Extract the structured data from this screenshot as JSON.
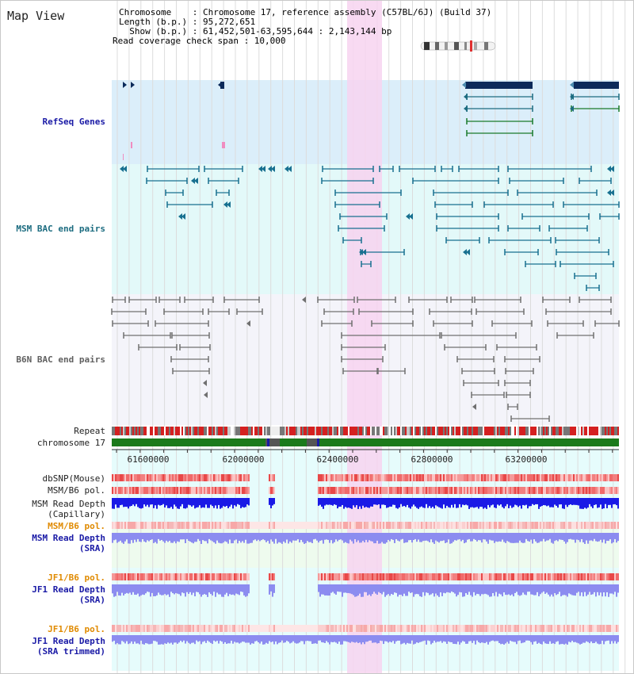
{
  "title": "Map View",
  "info": {
    "chromosome_line": "Chromosome    : Chromosome 17, reference assembly (C57BL/6J) (Build 37)",
    "length_line": "Length (b.p.) : 95,272,651",
    "show_line": "  Show (b.p.) : 61,452,501-63,595,644 : 2,143,144 bp",
    "span_line": "Read coverage check span : 10,000"
  },
  "tracks": {
    "refseq": "RefSeq Genes",
    "msm_bac": "MSM BAC end pairs",
    "b6n_bac": "B6N BAC end pairs",
    "repeat": "Repeat",
    "chromosome": "chromosome 17",
    "dbsnp": "dbSNP(Mouse)",
    "msm_b6_pol_1": "MSM/B6 pol.",
    "msm_depth_cap_1": "MSM Read Depth",
    "msm_depth_cap_2": "(Capillary)",
    "msm_b6_pol_2": "MSM/B6 pol.",
    "msm_depth_sra_1": "MSM Read Depth",
    "msm_depth_sra_2": "(SRA)",
    "jf1_b6_pol_1": "JF1/B6 pol.",
    "jf1_depth_sra_1": "JF1 Read Depth",
    "jf1_depth_sra_2": "(SRA)",
    "jf1_b6_pol_2": "JF1/B6 pol.",
    "jf1_trim_1": "JF1 Read Depth",
    "jf1_trim_2": "(SRA trimmed)"
  },
  "axis_ticks": [
    "61600000",
    "62000000",
    "62400000",
    "62800000",
    "63200000"
  ],
  "colors": {
    "refseq_bg": "#dbeefa",
    "msm_bg": "#e3f9f9",
    "b6n_bg": "#f4f4fa",
    "lower_bg": "#e6fcfc",
    "highlight": "#f7d4f0",
    "chromosome": "#1b7a1b",
    "refseq_feature": "#0b2a5a",
    "msm_feature": "#187090",
    "b6n_feature": "#707070",
    "depth_capillary": "#1a1ae6",
    "depth_sra": "#8c8cf0",
    "pol_red": "#f08080"
  }
}
